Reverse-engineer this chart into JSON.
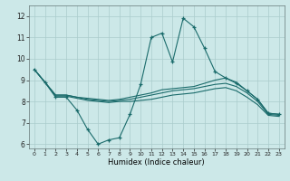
{
  "xlabel": "Humidex (Indice chaleur)",
  "background_color": "#cce8e8",
  "line_color": "#1a6b6b",
  "grid_color": "#aacccc",
  "xlim": [
    -0.5,
    23.5
  ],
  "ylim": [
    5.8,
    12.5
  ],
  "yticks": [
    6,
    7,
    8,
    9,
    10,
    11,
    12
  ],
  "xticks": [
    0,
    1,
    2,
    3,
    4,
    5,
    6,
    7,
    8,
    9,
    10,
    11,
    12,
    13,
    14,
    15,
    16,
    17,
    18,
    19,
    20,
    21,
    22,
    23
  ],
  "series": [
    {
      "x": [
        0,
        1,
        2,
        3,
        4,
        5,
        6,
        7,
        8,
        9,
        10,
        11,
        12,
        13,
        14,
        15,
        16,
        17,
        18,
        19,
        20,
        21,
        22,
        23
      ],
      "y": [
        9.5,
        8.9,
        8.2,
        8.2,
        7.6,
        6.7,
        6.0,
        6.2,
        6.3,
        7.4,
        8.8,
        11.0,
        11.2,
        9.85,
        11.9,
        11.5,
        10.5,
        9.4,
        9.1,
        8.85,
        8.5,
        8.1,
        7.45,
        7.4
      ],
      "marker": "+"
    },
    {
      "x": [
        0,
        1,
        2,
        3,
        4,
        5,
        6,
        7,
        8,
        9,
        10,
        11,
        12,
        13,
        14,
        15,
        16,
        17,
        18,
        19,
        20,
        21,
        22,
        23
      ],
      "y": [
        9.5,
        8.9,
        8.3,
        8.3,
        8.2,
        8.15,
        8.1,
        8.05,
        8.1,
        8.2,
        8.3,
        8.4,
        8.55,
        8.6,
        8.65,
        8.7,
        8.85,
        9.0,
        9.1,
        8.9,
        8.5,
        8.1,
        7.45,
        7.4
      ],
      "marker": null
    },
    {
      "x": [
        0,
        1,
        2,
        3,
        4,
        5,
        6,
        7,
        8,
        9,
        10,
        11,
        12,
        13,
        14,
        15,
        16,
        17,
        18,
        19,
        20,
        21,
        22,
        23
      ],
      "y": [
        9.5,
        8.9,
        8.3,
        8.3,
        8.2,
        8.1,
        8.05,
        8.0,
        8.05,
        8.1,
        8.2,
        8.3,
        8.4,
        8.5,
        8.55,
        8.6,
        8.7,
        8.8,
        8.85,
        8.7,
        8.4,
        8.0,
        7.4,
        7.35
      ],
      "marker": null
    },
    {
      "x": [
        0,
        1,
        2,
        3,
        4,
        5,
        6,
        7,
        8,
        9,
        10,
        11,
        12,
        13,
        14,
        15,
        16,
        17,
        18,
        19,
        20,
        21,
        22,
        23
      ],
      "y": [
        9.5,
        8.9,
        8.25,
        8.25,
        8.15,
        8.05,
        8.0,
        7.95,
        8.0,
        8.0,
        8.05,
        8.1,
        8.2,
        8.3,
        8.35,
        8.4,
        8.5,
        8.6,
        8.65,
        8.5,
        8.2,
        7.85,
        7.35,
        7.3
      ],
      "marker": null
    }
  ]
}
